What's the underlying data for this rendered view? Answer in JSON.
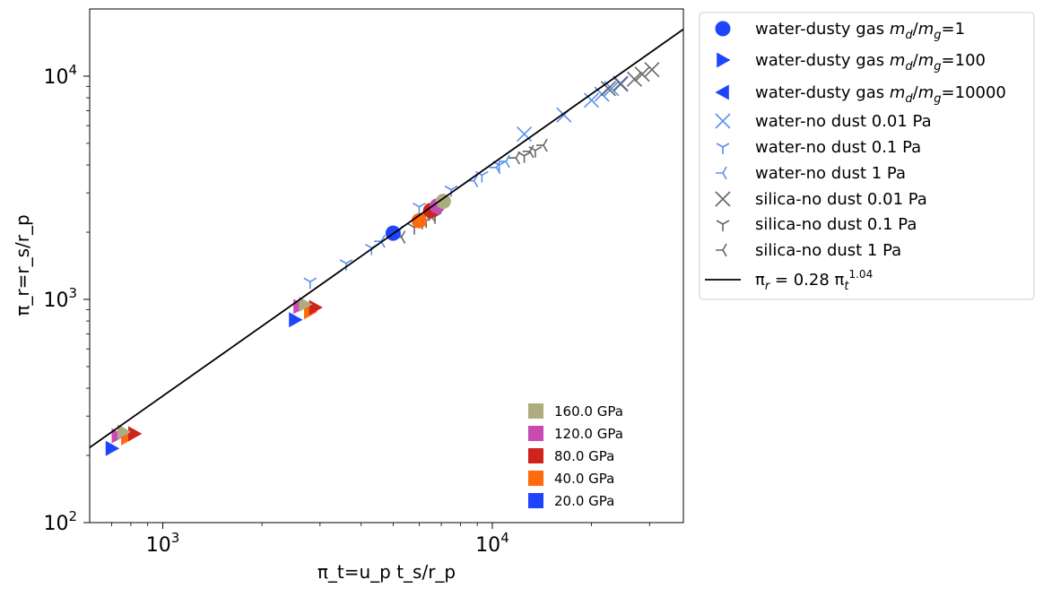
{
  "chart_data": {
    "type": "scatter",
    "x_scale": "log",
    "y_scale": "log",
    "xlim": [
      600,
      38000
    ],
    "ylim": [
      100,
      20000
    ],
    "xlabel": "π_t=u_p t_s/r_p",
    "ylabel": "π_r=r_s/r_p",
    "x_ticks": [
      {
        "value": 1000,
        "base": "10",
        "exp": "3"
      },
      {
        "value": 10000,
        "base": "10",
        "exp": "4"
      }
    ],
    "y_ticks": [
      {
        "value": 100,
        "base": "10",
        "exp": "2"
      },
      {
        "value": 1000,
        "base": "10",
        "exp": "3"
      },
      {
        "value": 10000,
        "base": "10",
        "exp": "4"
      }
    ],
    "grid": false,
    "legend_position": "outside-right-top",
    "colors": {
      "20.0 GPa": "#1f45fc",
      "40.0 GPa": "#ff6a0d",
      "80.0 GPa": "#d0231c",
      "120.0 GPa": "#c84bb2",
      "160.0 GPa": "#adac7f",
      "water_nodust": "#5b8ff0",
      "silica_nodust": "#666666",
      "fit": "#000000"
    },
    "fit": {
      "coef": 0.28,
      "exp": 1.04,
      "label": {
        "pre": "π",
        "sub": "r",
        "mid": " = 0.28 π",
        "sub2": "t",
        "sup": "1.04"
      }
    },
    "legend_main": [
      {
        "marker": "circle",
        "label_pre": "water-dusty gas ",
        "m1": "m",
        "s1": "d",
        "slash": "/",
        "m2": "m",
        "s2": "g",
        "label_post": "=1"
      },
      {
        "marker": "tri-right",
        "label_pre": "water-dusty gas ",
        "m1": "m",
        "s1": "d",
        "slash": "/",
        "m2": "m",
        "s2": "g",
        "label_post": "=100"
      },
      {
        "marker": "tri-left",
        "label_pre": "water-dusty gas ",
        "m1": "m",
        "s1": "d",
        "slash": "/",
        "m2": "m",
        "s2": "g",
        "label_post": "=10000"
      },
      {
        "marker": "x",
        "color": "#5b8ff0",
        "label": "water-no dust 0.01 Pa"
      },
      {
        "marker": "y-down",
        "color": "#5b8ff0",
        "label": "water-no dust 0.1 Pa"
      },
      {
        "marker": "y-left",
        "color": "#5b8ff0",
        "label": "water-no dust 1 Pa"
      },
      {
        "marker": "x",
        "color": "#666666",
        "label": "silica-no dust 0.01 Pa"
      },
      {
        "marker": "y-down",
        "color": "#666666",
        "label": "silica-no dust 0.1 Pa"
      },
      {
        "marker": "y-left",
        "color": "#666666",
        "label": "silica-no dust 1 Pa"
      },
      {
        "marker": "line",
        "label": "fit"
      }
    ],
    "legend_pressure": [
      {
        "label": "160.0 GPa",
        "color": "#adac7f"
      },
      {
        "label": "120.0 GPa",
        "color": "#c84bb2"
      },
      {
        "label": "80.0 GPa",
        "color": "#d0231c"
      },
      {
        "label": "40.0 GPa",
        "color": "#ff6a0d"
      },
      {
        "label": "20.0 GPa",
        "color": "#1f45fc"
      }
    ],
    "series": [
      {
        "name": "water-no dust 0.01 Pa",
        "marker": "x",
        "color": "#5b8ff0",
        "points": [
          [
            12500,
            5500
          ],
          [
            16500,
            6700
          ],
          [
            20000,
            7800
          ],
          [
            21500,
            8300
          ],
          [
            23000,
            8800
          ],
          [
            24500,
            9300
          ]
        ]
      },
      {
        "name": "water-no dust 0.1 Pa",
        "marker": "y-down",
        "color": "#5b8ff0",
        "points": [
          [
            2800,
            1200
          ],
          [
            3600,
            1450
          ],
          [
            4300,
            1700
          ],
          [
            6000,
            2600
          ],
          [
            7500,
            3100
          ],
          [
            9300,
            3600
          ],
          [
            10500,
            4000
          ]
        ]
      },
      {
        "name": "water-no dust 1 Pa",
        "marker": "y-left",
        "color": "#5b8ff0",
        "points": [
          [
            4600,
            1820
          ],
          [
            5200,
            2000
          ],
          [
            6300,
            2400
          ],
          [
            8800,
            3400
          ],
          [
            10300,
            3900
          ],
          [
            11000,
            4150
          ]
        ]
      },
      {
        "name": "silica-no dust 0.01 Pa",
        "marker": "x",
        "color": "#666666",
        "points": [
          [
            22500,
            8800
          ],
          [
            24500,
            9200
          ],
          [
            27000,
            9700
          ],
          [
            28500,
            10200
          ],
          [
            30500,
            10700
          ]
        ]
      },
      {
        "name": "silica-no dust 0.1 Pa",
        "marker": "y-down",
        "color": "#666666",
        "points": [
          [
            5800,
            2100
          ],
          [
            6300,
            2250
          ],
          [
            6700,
            2350
          ],
          [
            12500,
            4400
          ],
          [
            13500,
            4650
          ]
        ]
      },
      {
        "name": "silica-no dust 1 Pa",
        "marker": "y-left",
        "color": "#666666",
        "points": [
          [
            5300,
            1900
          ],
          [
            6000,
            2200
          ],
          [
            6500,
            2400
          ],
          [
            11800,
            4300
          ],
          [
            13000,
            4600
          ],
          [
            14300,
            4900
          ]
        ]
      },
      {
        "name": "water-dusty gas md/mg=1",
        "marker": "circle",
        "points": [
          [
            5000,
            1980,
            "20.0 GPa"
          ],
          [
            6000,
            2250,
            "40.0 GPa"
          ],
          [
            6500,
            2500,
            "80.0 GPa"
          ],
          [
            6800,
            2620,
            "120.0 GPa"
          ],
          [
            7100,
            2750,
            "160.0 GPa"
          ]
        ]
      },
      {
        "name": "water-dusty gas md/mg=100",
        "marker": "tri-right",
        "points": [
          [
            2520,
            810,
            "20.0 GPa"
          ],
          [
            2800,
            880,
            "40.0 GPa"
          ],
          [
            2900,
            920,
            "80.0 GPa"
          ],
          [
            2600,
            930,
            "120.0 GPa"
          ],
          [
            2700,
            950,
            "160.0 GPa"
          ],
          [
            700,
            215,
            "20.0 GPa"
          ],
          [
            780,
            240,
            "40.0 GPa"
          ],
          [
            820,
            250,
            "80.0 GPa"
          ],
          [
            730,
            245,
            "120.0 GPa"
          ],
          [
            760,
            255,
            "160.0 GPa"
          ]
        ]
      }
    ]
  }
}
